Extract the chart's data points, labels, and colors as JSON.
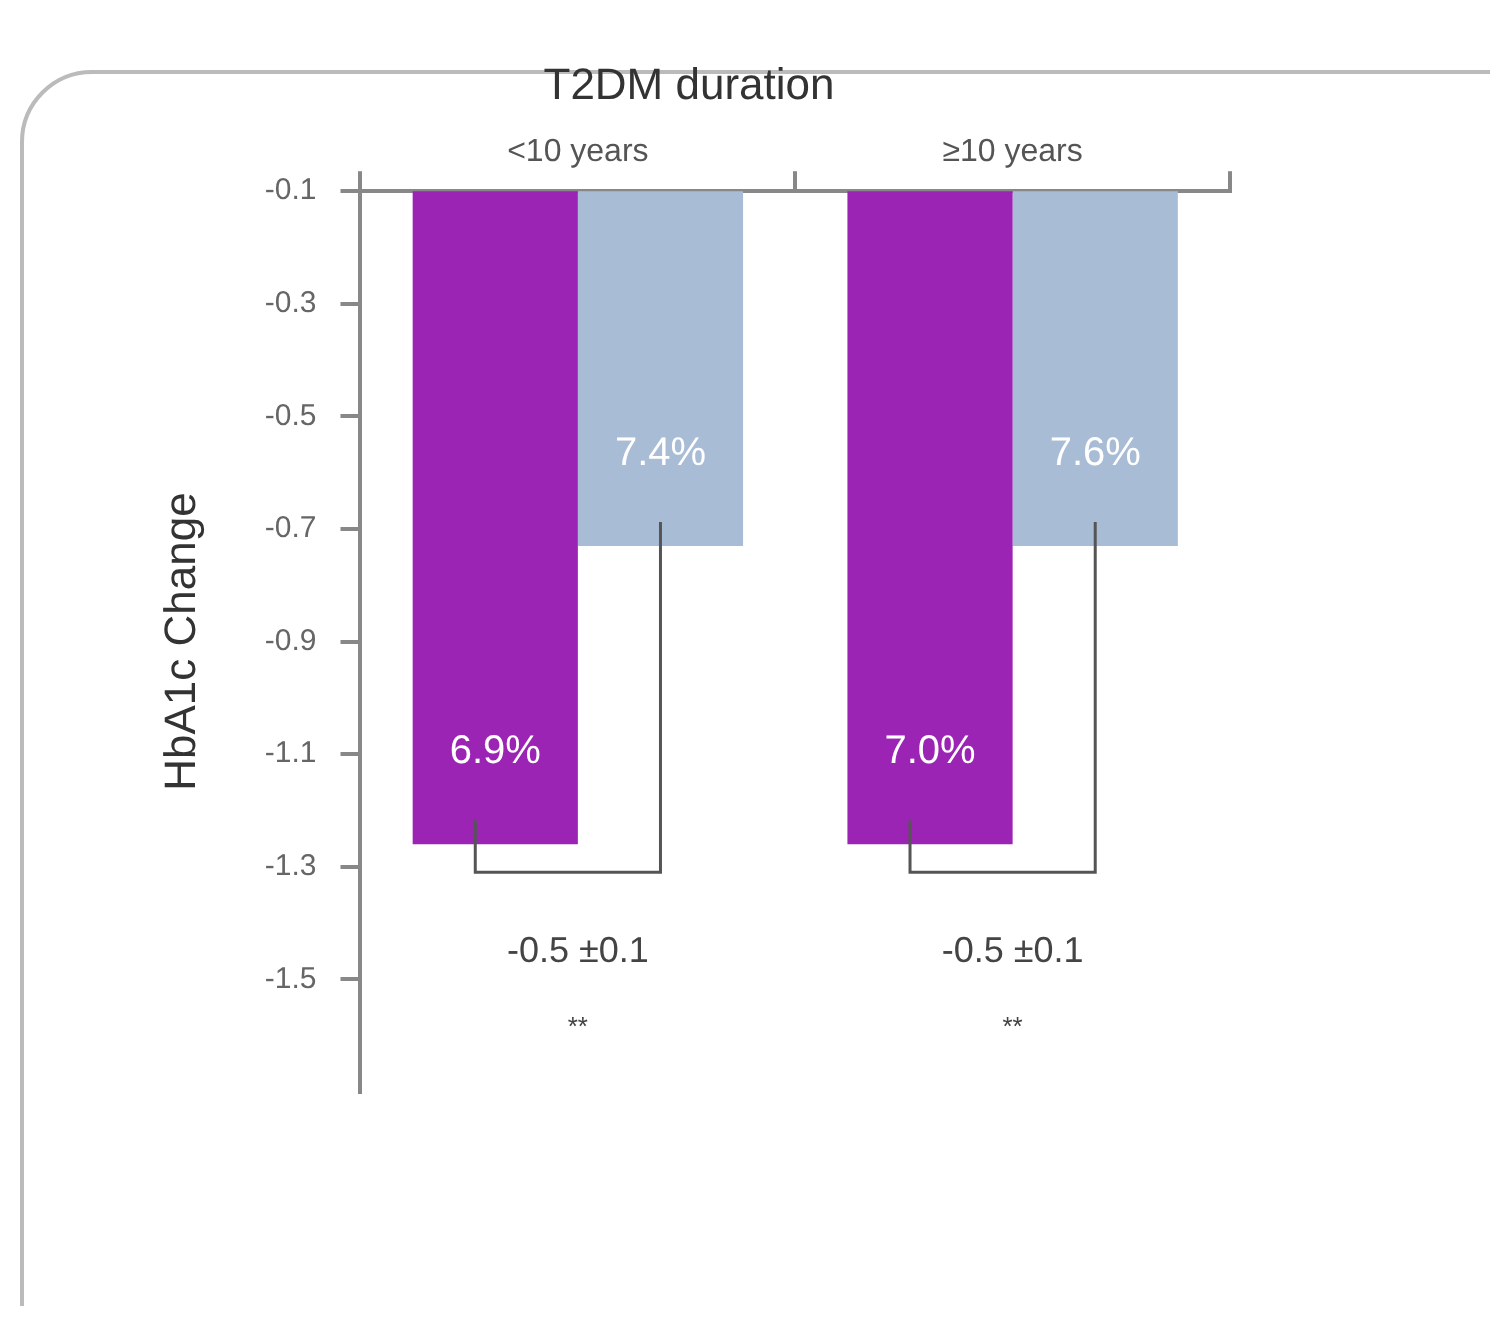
{
  "chart_data": {
    "type": "bar",
    "title": "T2DM duration",
    "ylabel": "HbA1c Change",
    "categories": [
      "<10 years",
      "≥10 years"
    ],
    "series": [
      {
        "color": "#9b24b4",
        "values": [
          -1.26,
          -1.26
        ]
      },
      {
        "color": "#a9bcd6",
        "values": [
          -0.73,
          -0.73
        ]
      }
    ],
    "ylim": [
      -1.7,
      -0.1
    ],
    "yticks": [
      -0.1,
      -0.3,
      -0.5,
      -0.7,
      -0.9,
      -1.1,
      -1.3,
      -1.5
    ],
    "grid": false,
    "legend": false,
    "annotations": [
      "6.9%",
      "7.4%",
      "-0.5 ±0.1",
      "**",
      "7.0%",
      "7.6%",
      "-0.5 ±0.1",
      "**"
    ]
  }
}
